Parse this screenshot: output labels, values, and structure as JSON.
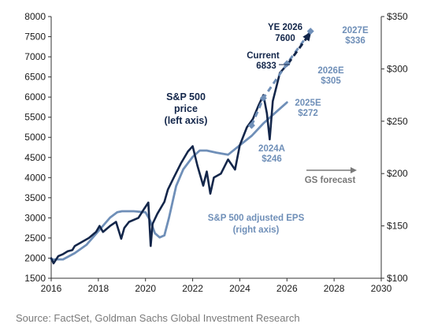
{
  "chart_data": {
    "type": "line",
    "xlim": [
      2016,
      2030
    ],
    "x_ticks": [
      "2016",
      "2018",
      "2020",
      "2022",
      "2024",
      "2026",
      "2028",
      "2030"
    ],
    "left_axis": {
      "ylim": [
        1500,
        8000
      ],
      "ticks": [
        "1500",
        "2000",
        "2500",
        "3000",
        "3500",
        "4000",
        "4500",
        "5000",
        "5500",
        "6000",
        "6500",
        "7000",
        "7500",
        "8000"
      ]
    },
    "right_axis": {
      "ylim": [
        100,
        350
      ],
      "ticks": [
        "$100",
        "$150",
        "$200",
        "$250",
        "$300",
        "$350"
      ]
    },
    "colors": {
      "price": "#13264a",
      "eps": "#6f8fb8",
      "forecast_arrow": "#7a7a7a"
    },
    "series": [
      {
        "name": "S&P 500 price",
        "axis": "left",
        "x": [
          2016.0,
          2016.1,
          2016.3,
          2016.5,
          2016.7,
          2016.9,
          2017.0,
          2017.3,
          2017.6,
          2017.9,
          2018.05,
          2018.2,
          2018.5,
          2018.75,
          2018.97,
          2019.1,
          2019.3,
          2019.5,
          2019.7,
          2019.95,
          2020.12,
          2020.22,
          2020.3,
          2020.5,
          2020.8,
          2020.95,
          2021.2,
          2021.5,
          2021.8,
          2022.0,
          2022.2,
          2022.45,
          2022.6,
          2022.75,
          2022.9,
          2023.2,
          2023.5,
          2023.8,
          2024.0,
          2024.3,
          2024.55,
          2024.8,
          2025.0,
          2025.15,
          2025.27,
          2025.4,
          2025.55,
          2025.7,
          2025.85,
          2026.05
        ],
        "y": [
          2000,
          1870,
          2050,
          2100,
          2170,
          2200,
          2300,
          2400,
          2500,
          2650,
          2800,
          2650,
          2800,
          2900,
          2480,
          2750,
          2900,
          2950,
          3000,
          3230,
          3380,
          2300,
          2850,
          3100,
          3400,
          3700,
          4000,
          4350,
          4650,
          4780,
          4300,
          3800,
          4150,
          3600,
          4000,
          4100,
          4450,
          4200,
          4800,
          5250,
          5450,
          5800,
          6050,
          5600,
          4950,
          5900,
          6250,
          6600,
          6700,
          6833
        ]
      },
      {
        "name": "S&P 500 adjusted EPS",
        "axis": "right",
        "x": [
          2016.0,
          2016.5,
          2017.0,
          2017.5,
          2018.0,
          2018.5,
          2018.8,
          2019.0,
          2019.5,
          2020.0,
          2020.2,
          2020.4,
          2020.6,
          2020.8,
          2021.0,
          2021.3,
          2021.6,
          2022.0,
          2022.3,
          2022.6,
          2023.0,
          2023.5,
          2024.0,
          2024.5,
          2025.0,
          2025.5,
          2026.0
        ],
        "y": [
          118,
          118,
          124,
          132,
          145,
          158,
          163,
          164,
          164,
          163,
          155,
          143,
          139,
          141,
          158,
          188,
          204,
          216,
          222,
          222,
          220,
          218,
          227,
          236,
          248,
          258,
          268
        ]
      },
      {
        "name": "EPS forecast",
        "axis": "right",
        "x": [
          2024.5,
          2025.0,
          2026.0,
          2027.0
        ],
        "y": [
          246,
          272,
          305,
          336
        ]
      },
      {
        "name": "Price forecast",
        "axis": "left",
        "x": [
          2026.05,
          2027.0
        ],
        "y": [
          6833,
          7600
        ]
      }
    ],
    "eps_points": [
      {
        "x": 2024.5,
        "y": 246,
        "label1": "2024A",
        "label2": "$246"
      },
      {
        "x": 2025.0,
        "y": 272,
        "label1": "2025E",
        "label2": "$272"
      },
      {
        "x": 2026.0,
        "y": 305,
        "label1": "2026E",
        "label2": "$305"
      },
      {
        "x": 2027.0,
        "y": 336,
        "label1": "2027E",
        "label2": "$336"
      }
    ],
    "annotations": {
      "price_series": [
        "S&P 500",
        "price",
        "(left axis)"
      ],
      "eps_series": [
        "S&P 500 adjusted EPS",
        "(right axis)"
      ],
      "current": [
        "Current",
        "6833"
      ],
      "ye_2026": [
        "YE 2026",
        "7600"
      ],
      "gs_forecast": "GS forecast"
    }
  },
  "source": "Source: FactSet, Goldman Sachs Global Investment Research"
}
